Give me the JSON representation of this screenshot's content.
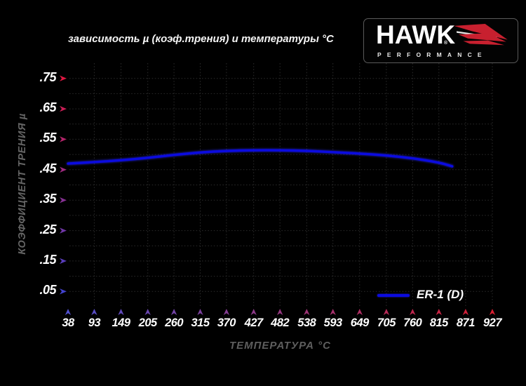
{
  "header": {
    "title": "зависимость µ (коэф.трения) и температуры °C"
  },
  "logo": {
    "brand": "HAWK",
    "reg": "®",
    "subbrand": "PERFORMANCE",
    "wing_color": "#c8202f",
    "wing_trim_color": "#ffffff"
  },
  "legend": {
    "label": "ER-1 (D)"
  },
  "colors": {
    "background": "#000000",
    "line_blue": "#0b0be0",
    "grid": "#2a2a2a",
    "axis_top_red": [
      224,
      24,
      66
    ],
    "axis_bottom_blue": [
      67,
      67,
      207
    ],
    "axis_left_blue": [
      80,
      80,
      207
    ],
    "axis_right_red": [
      218,
      30,
      48
    ],
    "tick_text": "#ffffff",
    "axis_title_text": "#646464"
  },
  "chart_data": {
    "type": "line",
    "title": "зависимость µ (коэф.трения) и температуры °C",
    "xlabel": "ТЕМПЕРАТУРА °C",
    "ylabel": "КОЭФФИЦИЕНТ ТРЕНИЯ µ",
    "x_ticks": [
      38,
      93,
      149,
      205,
      260,
      315,
      370,
      427,
      482,
      538,
      593,
      649,
      705,
      760,
      815,
      871,
      927
    ],
    "y_tick_labels": [
      ".75",
      ".65",
      ".55",
      ".45",
      ".35",
      ".25",
      ".15",
      ".05"
    ],
    "y_tick_values": [
      0.75,
      0.65,
      0.55,
      0.45,
      0.35,
      0.25,
      0.15,
      0.05
    ],
    "xlim": [
      38,
      927
    ],
    "ylim": [
      0,
      0.8
    ],
    "grid": "dotted; horizontal every 0.05 µ, vertical at each temperature tick",
    "legend_position": "bottom-right",
    "series": [
      {
        "name": "ER-1 (D)",
        "color": "#0b0be0",
        "x": [
          38,
          93,
          149,
          205,
          260,
          315,
          370,
          427,
          482,
          538,
          593,
          649,
          705,
          760,
          815,
          843
        ],
        "y": [
          0.47,
          0.475,
          0.481,
          0.489,
          0.499,
          0.507,
          0.512,
          0.514,
          0.514,
          0.512,
          0.508,
          0.503,
          0.497,
          0.488,
          0.474,
          0.461
        ]
      }
    ]
  }
}
